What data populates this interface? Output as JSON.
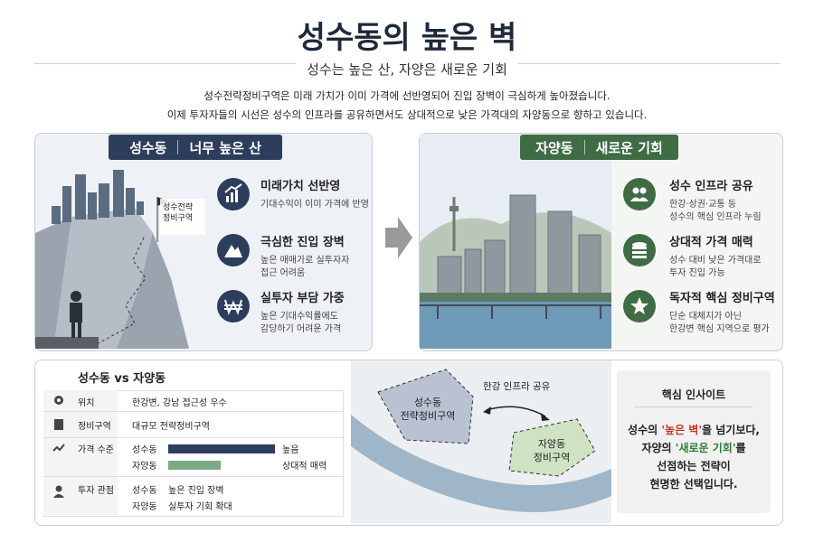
{
  "header": {
    "title": "성수동의 높은 벽",
    "subtitle": "성수는 높은 산, 자양은 새로운 기회",
    "intro": [
      "성수전략정비구역은 미래 가치가 이미 가격에 선반영되어 진입 장벽이 극심하게 높아졌습니다.",
      "이제 투자자들의 시선은 성수의 인프라를 공유하면서도 상대적으로 낮은 가격대의 자양동으로 향하고 있습니다."
    ]
  },
  "left_panel": {
    "badge": [
      "성수동",
      "너무 높은 산"
    ],
    "flag": [
      "성수전략",
      "정비구역"
    ],
    "items": [
      {
        "title": "미래가치 선반영",
        "desc": [
          "기대수익이 이미 가격에 반영"
        ]
      },
      {
        "title": "극심한 진입 장벽",
        "desc": [
          "높은 매매가로 실투자자",
          "접근 어려움"
        ]
      },
      {
        "title": "실투자 부담 가중",
        "desc": [
          "높은 기대수익률에도",
          "감당하기 어려운 가격"
        ]
      }
    ]
  },
  "right_panel": {
    "badge": [
      "자양동",
      "새로운 기회"
    ],
    "items": [
      {
        "title": "성수 인프라 공유",
        "desc": [
          "한강·상권·교통 등",
          "성수의 핵심 인프라 누림"
        ]
      },
      {
        "title": "상대적 가격 매력",
        "desc": [
          "성수 대비 낮은 가격대로",
          "투자 진입 가능"
        ]
      },
      {
        "title": "독자적 핵심 정비구역",
        "desc": [
          "단순 대체지가 아닌",
          "한강변 핵심 지역으로 평가"
        ]
      }
    ]
  },
  "comparison": {
    "title": "성수동 vs 자양동",
    "rows": [
      {
        "label": "위치",
        "text": "한강변, 강남 접근성 우수"
      },
      {
        "label": "정비구역",
        "text": "대규모 전략정비구역"
      },
      {
        "label": "가격 수준",
        "items": [
          {
            "name": "성수동",
            "note": "높음"
          },
          {
            "name": "자양동",
            "note": "상대적 매력"
          }
        ]
      },
      {
        "label": "투자 관점",
        "items": [
          {
            "name": "성수동",
            "note": "높은 진입 장벽"
          },
          {
            "name": "자양동",
            "note": "실투자 기회 확대"
          }
        ]
      }
    ]
  },
  "map": {
    "seongsu": [
      "성수동",
      "전략정비구역"
    ],
    "jayang": [
      "자양동",
      "정비구역"
    ],
    "link": "한강 인프라 공유"
  },
  "insight": {
    "title": "핵심 인사이트",
    "lines": [
      [
        "성수의 ",
        "'높은 벽'",
        "을 넘기보다,"
      ],
      [
        "자양의 ",
        "'새로운 기회'",
        "를"
      ],
      [
        "선점하는 전략이"
      ],
      [
        "현명한 선택입니다."
      ]
    ]
  }
}
